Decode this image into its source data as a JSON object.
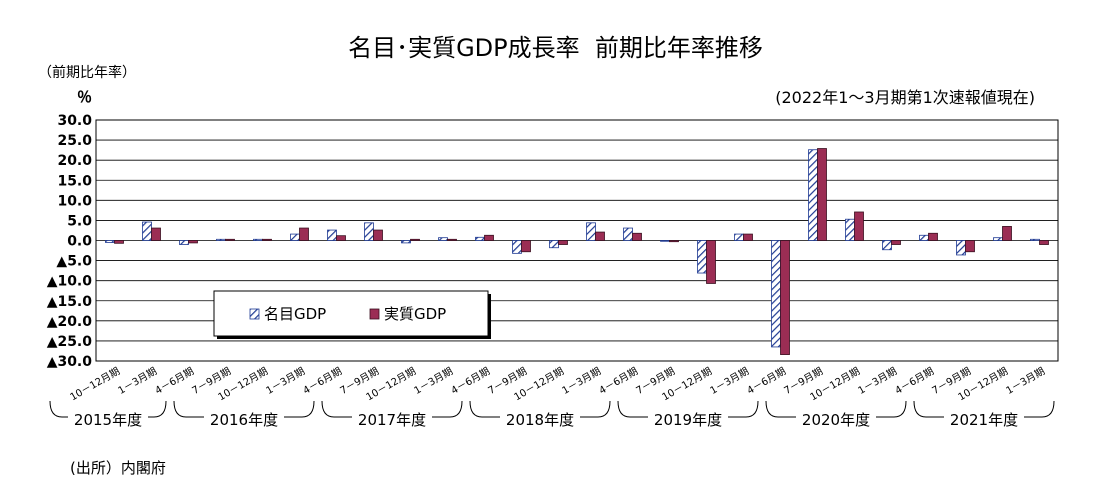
{
  "title": {
    "main": "名目･実質GDP成長率",
    "sub": "前期比年率推移"
  },
  "unit_label": "（前期比年率）",
  "percent_label": "％",
  "as_of": "(2022年1～3月期第1次速報値現在)",
  "source": "(出所）内閣府",
  "chart_data": {
    "type": "bar",
    "categories": [
      "10－12月期",
      "1－3月期",
      "4－6月期",
      "7－9月期",
      "10－12月期",
      "1－3月期",
      "4－6月期",
      "7－9月期",
      "10－12月期",
      "1－3月期",
      "4－6月期",
      "7－9月期",
      "10－12月期",
      "1－3月期",
      "4－6月期",
      "7－9月期",
      "10－12月期",
      "1－3月期",
      "4－6月期",
      "7－9月期",
      "10－12月期",
      "1－3月期",
      "4－6月期",
      "7－9月期",
      "10－12月期",
      "1－3月期"
    ],
    "fiscal_years": [
      {
        "label": "2015年度",
        "start": 0,
        "end": 1
      },
      {
        "label": "2016年度",
        "start": 2,
        "end": 5
      },
      {
        "label": "2017年度",
        "start": 6,
        "end": 9
      },
      {
        "label": "2018年度",
        "start": 10,
        "end": 13
      },
      {
        "label": "2019年度",
        "start": 14,
        "end": 17
      },
      {
        "label": "2020年度",
        "start": 18,
        "end": 21
      },
      {
        "label": "2021年度",
        "start": 22,
        "end": 25
      }
    ],
    "series": [
      {
        "name": "名目GDP",
        "style": "hatched",
        "color": "#1f3a93",
        "values": [
          -0.5,
          4.6,
          -1.0,
          0.3,
          0.3,
          1.6,
          2.6,
          4.4,
          -0.6,
          0.7,
          0.8,
          -3.2,
          -1.8,
          4.4,
          3.1,
          -0.2,
          -8.1,
          1.6,
          -26.5,
          22.6,
          5.3,
          -2.3,
          1.3,
          -3.6,
          0.7,
          0.3
        ]
      },
      {
        "name": "実質GDP",
        "style": "solid",
        "color": "#9b2d54",
        "values": [
          -0.7,
          3.1,
          -0.6,
          0.3,
          0.3,
          3.1,
          1.2,
          2.6,
          0.3,
          0.3,
          1.3,
          -2.8,
          -1.0,
          2.1,
          1.8,
          -0.3,
          -10.7,
          1.6,
          -28.4,
          22.9,
          7.1,
          -1.0,
          1.8,
          -2.8,
          3.5,
          -1.0
        ]
      }
    ],
    "y_ticks": [
      "30.0",
      "25.0",
      "20.0",
      "15.0",
      "10.0",
      "5.0",
      "0.0",
      "▲5.0",
      "▲10.0",
      "▲15.0",
      "▲20.0",
      "▲25.0",
      "▲30.0"
    ],
    "ylim": [
      -30,
      30
    ],
    "grid": true,
    "legend_position": "lower-left inside plot"
  }
}
